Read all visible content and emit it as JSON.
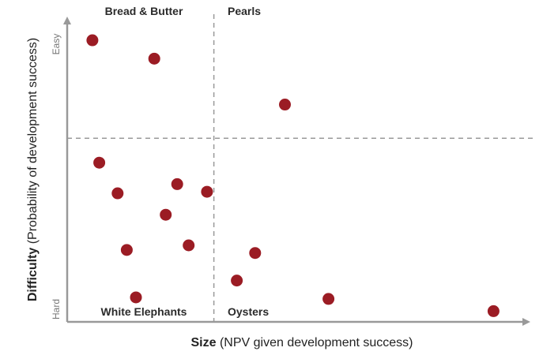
{
  "chart_data": {
    "type": "scatter",
    "title": "",
    "xlabel_bold": "Size",
    "xlabel_rest": " (NPV given development success)",
    "ylabel_bold": "Difficulty",
    "ylabel_rest": " (Probability of development success)",
    "y_low_label": "Hard",
    "y_high_label": "Easy",
    "xlim": [
      0,
      100
    ],
    "ylim": [
      0,
      100
    ],
    "x_divider": 32,
    "y_divider": 60,
    "quadrants": {
      "top_left": "Bread & Butter",
      "top_right": "Pearls",
      "bottom_left": "White Elephants",
      "bottom_right": "Oysters"
    },
    "grid": false,
    "legend": "none",
    "colors": {
      "marker": "#9b1c24",
      "axis": "#999999",
      "divider": "#999999"
    },
    "points": [
      {
        "x": 5.5,
        "y": 92
      },
      {
        "x": 19,
        "y": 86
      },
      {
        "x": 47.5,
        "y": 71
      },
      {
        "x": 7,
        "y": 52
      },
      {
        "x": 11,
        "y": 42
      },
      {
        "x": 24,
        "y": 45
      },
      {
        "x": 30.5,
        "y": 42.5
      },
      {
        "x": 21.5,
        "y": 35
      },
      {
        "x": 13,
        "y": 23.5
      },
      {
        "x": 26.5,
        "y": 25
      },
      {
        "x": 41,
        "y": 22.5
      },
      {
        "x": 37,
        "y": 13.5
      },
      {
        "x": 15,
        "y": 8
      },
      {
        "x": 57,
        "y": 7.5
      },
      {
        "x": 93,
        "y": 3.5
      }
    ]
  }
}
